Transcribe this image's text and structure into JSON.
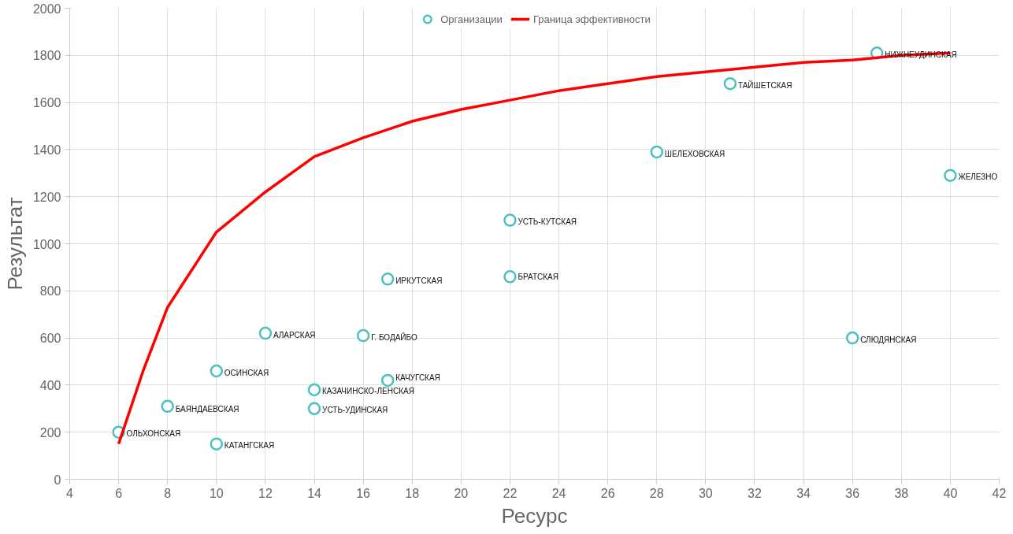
{
  "chart_data": {
    "type": "scatter",
    "xlabel": "Ресурс",
    "ylabel": "Результат",
    "xlim": [
      4,
      42
    ],
    "xticks": [
      4,
      6,
      8,
      10,
      12,
      14,
      16,
      18,
      20,
      22,
      24,
      26,
      28,
      30,
      32,
      34,
      36,
      38,
      40,
      42
    ],
    "ylim": [
      0,
      2000
    ],
    "yticks": [
      0,
      200,
      400,
      600,
      800,
      1000,
      1200,
      1400,
      1600,
      1800,
      2000
    ],
    "grid": true,
    "legend": "top",
    "marker": "circle",
    "series": [
      {
        "name": "Организации",
        "color": "#4bc0c0",
        "x": [
          6,
          8,
          10,
          10,
          12,
          16,
          14,
          14,
          17,
          17,
          22,
          22,
          28,
          31,
          37,
          40,
          36
        ],
        "values": [
          200,
          310,
          150,
          460,
          620,
          610,
          380,
          300,
          420,
          850,
          860,
          1100,
          1390,
          1680,
          1810,
          1290,
          600
        ]
      },
      {
        "name": "Граница эффективности",
        "type": "line",
        "color": "#ff0000",
        "marker": "none",
        "x": [
          6,
          7,
          8,
          10,
          12,
          14,
          16,
          18,
          20,
          22,
          24,
          26,
          28,
          30,
          32,
          34,
          36,
          38,
          40
        ],
        "values": [
          150,
          460,
          730,
          1050,
          1220,
          1370,
          1450,
          1520,
          1570,
          1610,
          1650,
          1680,
          1710,
          1730,
          1750,
          1770,
          1780,
          1800,
          1810
        ]
      }
    ],
    "annotations": [
      {
        "text": "ОЛЬХОНСКАЯ",
        "x": 6,
        "y": 200
      },
      {
        "text": "БАЯНДАЕВСКАЯ",
        "x": 8,
        "y": 306
      },
      {
        "text": "КАТАНГСКАЯ",
        "x": 10,
        "y": 149
      },
      {
        "text": "ОСИНСКАЯ",
        "x": 10,
        "y": 459
      },
      {
        "text": "АЛАРСКАЯ",
        "x": 12,
        "y": 619
      },
      {
        "text": "Г. БОДАЙБО",
        "x": 16,
        "y": 608
      },
      {
        "text": "КАЗАЧИНСКО-ЛЕНСКАЯ",
        "x": 14,
        "y": 380
      },
      {
        "text": "УСТЬ-УДИНСКАЯ",
        "x": 14,
        "y": 300
      },
      {
        "text": "КАЧУГСКАЯ",
        "x": 17,
        "y": 420
      },
      {
        "text": "ИРКУТСКАЯ",
        "x": 17,
        "y": 850
      },
      {
        "text": "БРАТСКАЯ",
        "x": 22,
        "y": 865
      },
      {
        "text": "УСТЬ-КУТСКАЯ",
        "x": 22,
        "y": 1100
      },
      {
        "text": "ШЕЛЕХОВСКАЯ",
        "x": 28,
        "y": 1388
      },
      {
        "text": "ТАЙШЕТСКАЯ",
        "x": 31,
        "y": 1680
      },
      {
        "text": "НИЖНЕУДИНСКАЯ",
        "x": 37,
        "y": 1808
      },
      {
        "text": "ЖЕЛЕЗНО",
        "x": 40,
        "y": 1292
      },
      {
        "text": "СЛЮДЯНСКАЯ",
        "x": 36,
        "y": 598
      }
    ]
  }
}
